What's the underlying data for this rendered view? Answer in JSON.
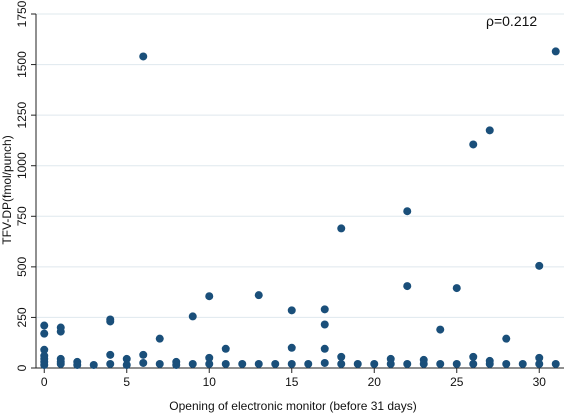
{
  "chart_data": {
    "type": "scatter",
    "title": "",
    "annotation": "ρ=0.212",
    "xlabel": "Opening of electronic monitor (before 31 days)",
    "ylabel": "TFV-DP(fmol/punch)",
    "xlim": [
      -0.5,
      31.5
    ],
    "ylim": [
      0,
      1750
    ],
    "xticks": [
      "0",
      "5",
      "10",
      "15",
      "20",
      "25",
      "30"
    ],
    "yticks": [
      "0",
      "250",
      "500",
      "750",
      "1000",
      "1250",
      "1500",
      "1750"
    ],
    "grid": "horizontal",
    "marker_color": "#1a4f7a",
    "points": [
      [
        0,
        210
      ],
      [
        0,
        170
      ],
      [
        0,
        90
      ],
      [
        0,
        60
      ],
      [
        0,
        45
      ],
      [
        0,
        30
      ],
      [
        0,
        15
      ],
      [
        1,
        200
      ],
      [
        1,
        180
      ],
      [
        1,
        45
      ],
      [
        1,
        30
      ],
      [
        1,
        20
      ],
      [
        2,
        30
      ],
      [
        2,
        15
      ],
      [
        3,
        15
      ],
      [
        4,
        240
      ],
      [
        4,
        230
      ],
      [
        4,
        65
      ],
      [
        4,
        20
      ],
      [
        5,
        45
      ],
      [
        5,
        15
      ],
      [
        6,
        1540
      ],
      [
        6,
        65
      ],
      [
        6,
        25
      ],
      [
        7,
        145
      ],
      [
        7,
        20
      ],
      [
        8,
        30
      ],
      [
        8,
        15
      ],
      [
        9,
        255
      ],
      [
        9,
        20
      ],
      [
        10,
        355
      ],
      [
        10,
        50
      ],
      [
        10,
        20
      ],
      [
        11,
        95
      ],
      [
        11,
        20
      ],
      [
        12,
        20
      ],
      [
        13,
        360
      ],
      [
        13,
        20
      ],
      [
        14,
        20
      ],
      [
        15,
        285
      ],
      [
        15,
        100
      ],
      [
        15,
        20
      ],
      [
        16,
        20
      ],
      [
        17,
        290
      ],
      [
        17,
        215
      ],
      [
        17,
        95
      ],
      [
        17,
        25
      ],
      [
        18,
        690
      ],
      [
        18,
        55
      ],
      [
        18,
        20
      ],
      [
        19,
        20
      ],
      [
        20,
        20
      ],
      [
        21,
        45
      ],
      [
        21,
        20
      ],
      [
        22,
        775
      ],
      [
        22,
        405
      ],
      [
        22,
        20
      ],
      [
        23,
        40
      ],
      [
        23,
        20
      ],
      [
        24,
        190
      ],
      [
        24,
        20
      ],
      [
        25,
        395
      ],
      [
        25,
        20
      ],
      [
        26,
        1105
      ],
      [
        26,
        55
      ],
      [
        26,
        20
      ],
      [
        27,
        1175
      ],
      [
        27,
        35
      ],
      [
        27,
        20
      ],
      [
        28,
        145
      ],
      [
        28,
        20
      ],
      [
        29,
        20
      ],
      [
        30,
        505
      ],
      [
        30,
        50
      ],
      [
        30,
        20
      ],
      [
        31,
        1565
      ],
      [
        31,
        20
      ]
    ]
  }
}
